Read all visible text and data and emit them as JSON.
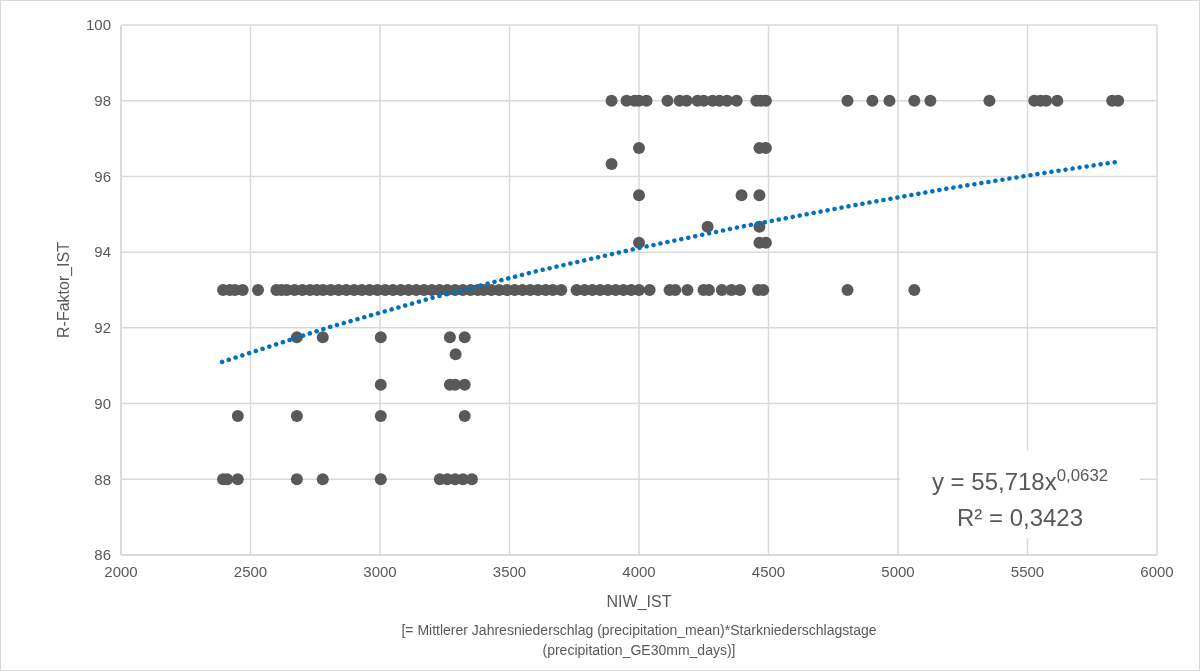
{
  "chart_data": {
    "type": "scatter",
    "xlabel": "NIW_IST\n[= Mittlerer Jahresniederschlag (precipitation_mean)*Starkniederschlagstage\n(precipitation_GE30mm_days)]",
    "ylabel": "R-Faktor_IST",
    "xlim": [
      2000,
      6000
    ],
    "xticks": [
      2000,
      2500,
      3000,
      3500,
      4000,
      4500,
      5000,
      5500,
      6000
    ],
    "ylim": [
      86,
      100
    ],
    "yticks": [
      86,
      88,
      90,
      92,
      94,
      96,
      98,
      100
    ],
    "grid": true,
    "annotations": [
      "y = 55,718x$^{0,0632}$",
      "R² = 0,3423"
    ],
    "series": [
      {
        "marker": "circle",
        "color": "#595959",
        "x": [
          3894,
          3952,
          3983,
          4000,
          4029,
          4110,
          4157,
          4184,
          4226,
          4250,
          4284,
          4311,
          4340,
          4377,
          4453,
          4470,
          4490,
          4805,
          4901,
          4967,
          5063,
          5125,
          5353,
          5526,
          5550,
          5572,
          5615,
          5827,
          5850,
          4000,
          4465,
          4490,
          3894,
          4000,
          4396,
          4465,
          4265,
          4465,
          4000,
          4465,
          4490,
          2394,
          2420,
          2440,
          2470,
          2529,
          2600,
          2620,
          2640,
          2670,
          2700,
          2730,
          2756,
          2780,
          2810,
          2840,
          2870,
          2900,
          2930,
          2960,
          2990,
          3020,
          3050,
          3080,
          3110,
          3140,
          3170,
          3200,
          3230,
          3260,
          3290,
          3320,
          3350,
          3377,
          3400,
          3430,
          3460,
          3490,
          3520,
          3550,
          3580,
          3610,
          3640,
          3667,
          3700,
          3759,
          3790,
          3820,
          3850,
          3880,
          3910,
          3940,
          3970,
          4000,
          4041,
          4118,
          4140,
          4187,
          4249,
          4270,
          4320,
          4357,
          4390,
          4460,
          4480,
          4805,
          5063,
          2679,
          2779,
          3003,
          3270,
          3327,
          3292,
          3003,
          3270,
          3290,
          3327,
          2451,
          2679,
          3003,
          3327,
          2394,
          2410,
          2451,
          2679,
          2779,
          3003,
          3231,
          3260,
          3290,
          3320,
          3355
        ],
        "values": [
          98,
          98,
          98,
          98,
          98,
          98,
          98,
          98,
          98,
          98,
          98,
          98,
          98,
          98,
          98,
          98,
          98,
          98,
          98,
          98,
          98,
          98,
          98,
          98,
          98,
          98,
          98,
          98,
          98,
          96.75,
          96.75,
          96.75,
          96.33,
          95.5,
          95.5,
          95.5,
          94.67,
          94.67,
          94.25,
          94.25,
          94.25,
          93,
          93,
          93,
          93,
          93,
          93,
          93,
          93,
          93,
          93,
          93,
          93,
          93,
          93,
          93,
          93,
          93,
          93,
          93,
          93,
          93,
          93,
          93,
          93,
          93,
          93,
          93,
          93,
          93,
          93,
          93,
          93,
          93,
          93,
          93,
          93,
          93,
          93,
          93,
          93,
          93,
          93,
          93,
          93,
          93,
          93,
          93,
          93,
          93,
          93,
          93,
          93,
          93,
          93,
          93,
          93,
          93,
          93,
          93,
          93,
          93,
          93,
          93,
          93,
          93,
          93,
          91.75,
          91.75,
          91.75,
          91.75,
          91.75,
          91.3,
          90.5,
          90.5,
          90.5,
          90.5,
          89.67,
          89.67,
          89.67,
          89.67,
          88,
          88,
          88,
          88,
          88,
          88,
          88,
          88,
          88,
          88,
          88
        ]
      },
      {
        "type": "line",
        "marker": "none",
        "color": "#0070c0",
        "line_style": "dotted",
        "x": [
          2390,
          2800,
          3200,
          3600,
          4000,
          4400,
          4800,
          5200,
          5600,
          5850
        ],
        "values": [
          91.1,
          92.01,
          92.79,
          93.49,
          94.11,
          94.68,
          95.2,
          95.69,
          96.13,
          96.39
        ]
      }
    ]
  }
}
